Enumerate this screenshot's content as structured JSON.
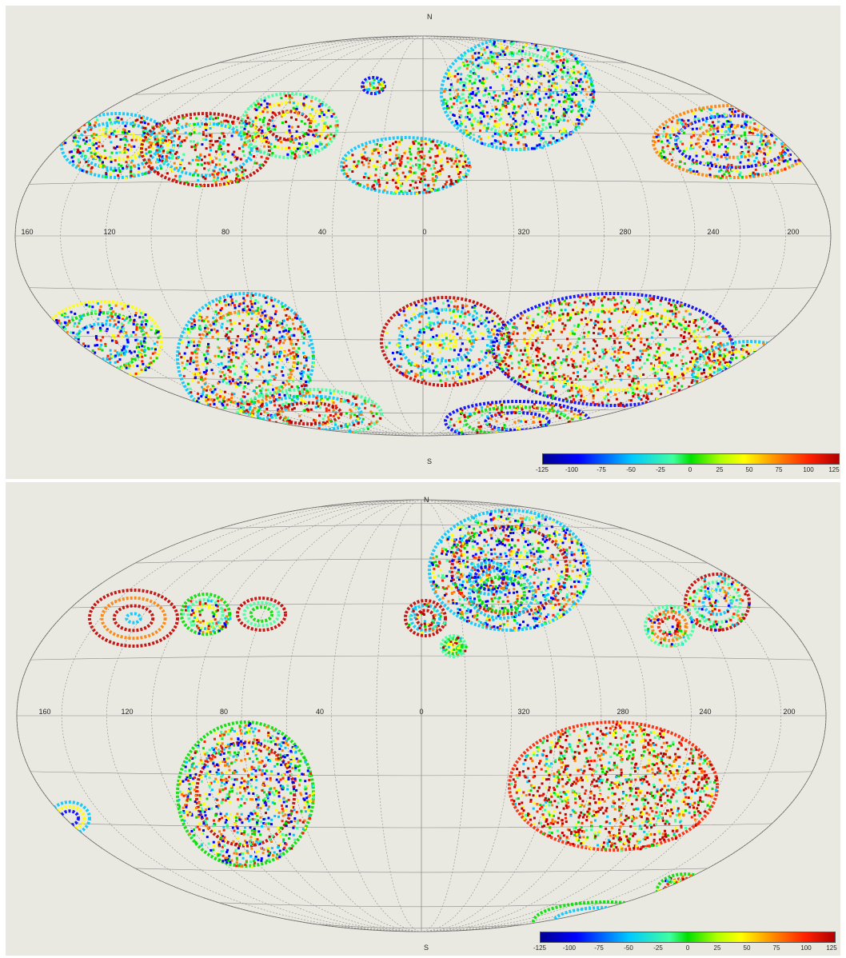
{
  "maps": [
    {
      "id": "top",
      "north_label": "N",
      "south_label": "S",
      "longitude_labels": [
        "160",
        "120",
        "80",
        "40",
        "0",
        "320",
        "280",
        "240",
        "200"
      ],
      "colorbar": {
        "ticks": [
          "-125",
          "-100",
          "-75",
          "-50",
          "-25",
          "0",
          "25",
          "50",
          "75",
          "100",
          "125"
        ],
        "colors": [
          "#00008f",
          "#0000ff",
          "#00c8ff",
          "#40ff9f",
          "#00e000",
          "#ffff00",
          "#ff8000",
          "#b00000"
        ]
      },
      "projection": "mollweide/hammer all-sky",
      "data_extent": "latitudes beyond approximately ±20° only"
    },
    {
      "id": "bottom",
      "north_label": "N",
      "south_label": "S",
      "longitude_labels": [
        "160",
        "120",
        "80",
        "40",
        "0",
        "320",
        "280",
        "240",
        "200"
      ],
      "colorbar": {
        "ticks": [
          "-125",
          "-100",
          "-75",
          "-50",
          "-25",
          "0",
          "25",
          "50",
          "75",
          "100",
          "125"
        ],
        "colors": [
          "#00008f",
          "#0000ff",
          "#00c8ff",
          "#40ff9f",
          "#00e000",
          "#ffff00",
          "#ff8000",
          "#b00000"
        ]
      },
      "projection": "mollweide/hammer all-sky",
      "data_extent": "sparser coverage, fewer patches"
    }
  ],
  "palette": {
    "background": "#eae9e1",
    "grid": "#8a8a8a",
    "outline": "#555555"
  }
}
